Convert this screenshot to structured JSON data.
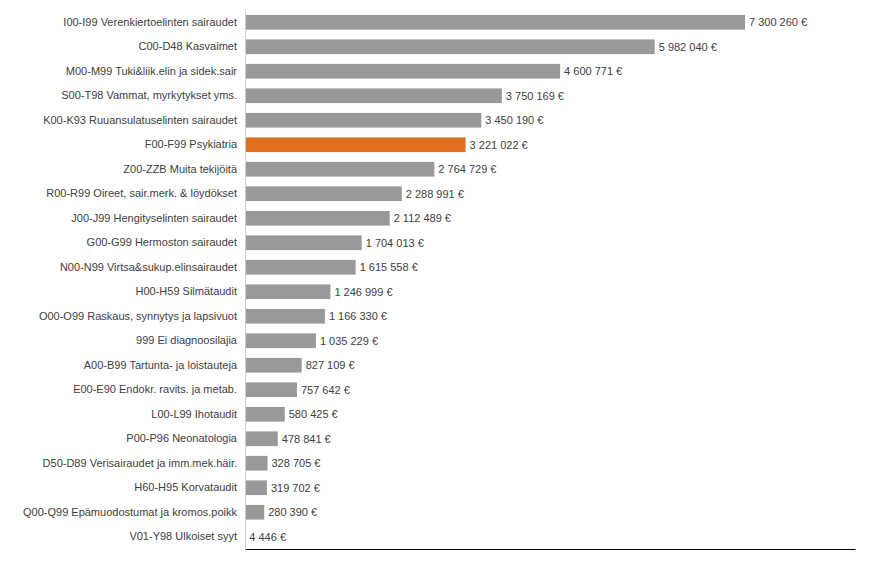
{
  "chart_data": {
    "type": "bar",
    "orientation": "horizontal",
    "categories": [
      "I00-I99 Verenkiertoelinten sairaudet",
      "C00-D48 Kasvaimet",
      "M00-M99 Tuki&liik.elin ja sidek.sair",
      "S00-T98 Vammat, myrkytykset yms.",
      "K00-K93 Ruuansulatuselinten sairaudet",
      "F00-F99 Psykiatria",
      "Z00-ZZB Muita tekijöitä",
      "R00-R99 Oireet, sair.merk. & löydökset",
      "J00-J99 Hengityselinten sairaudet",
      "G00-G99 Hermoston sairaudet",
      "N00-N99 Virtsa&sukup.elinsairaudet",
      "H00-H59 Silmätaudit",
      "O00-O99 Raskaus, synnytys ja lapsivuot",
      "999 Ei diagnoosilajia",
      "A00-B99 Tartunta- ja loistauteja",
      "E00-E90 Endokr. ravits. ja metab.",
      "L00-L99 Ihotaudit",
      "P00-P96 Neonatologia",
      "D50-D89 Verisairaudet ja imm.mek.häir.",
      "H60-H95 Korvataudit",
      "Q00-Q99 Epämuodostumat ja kromos.poikk",
      "V01-Y98 Ulkoiset syyt"
    ],
    "values": [
      7300260,
      5982040,
      4600771,
      3750169,
      3450190,
      3221022,
      2764729,
      2288991,
      2112489,
      1704013,
      1615558,
      1246999,
      1166330,
      1035229,
      827109,
      757642,
      580425,
      478841,
      328705,
      319702,
      280390,
      4446
    ],
    "value_labels": [
      "7 300 260 €",
      "5 982 040 €",
      "4 600 771 €",
      "3 750 169 €",
      "3 450 190 €",
      "3 221 022 €",
      "2 764 729 €",
      "2 288 991 €",
      "2 112 489 €",
      "1 704 013 €",
      "1 615 558 €",
      "1 246 999 €",
      "1 166 330 €",
      "1 035 229 €",
      "827 109 €",
      "757 642 €",
      "580 425 €",
      "478 841 €",
      "328 705 €",
      "319 702 €",
      "280 390 €",
      "4 446 €"
    ],
    "colors": [
      "#999999",
      "#999999",
      "#999999",
      "#999999",
      "#999999",
      "#e07020",
      "#999999",
      "#999999",
      "#999999",
      "#999999",
      "#999999",
      "#999999",
      "#999999",
      "#999999",
      "#999999",
      "#999999",
      "#999999",
      "#999999",
      "#999999",
      "#999999",
      "#999999",
      "#999999"
    ],
    "xlim": [
      0,
      8906317.2
    ],
    "data_labels": true,
    "tick_labels": "y",
    "grid": false
  }
}
